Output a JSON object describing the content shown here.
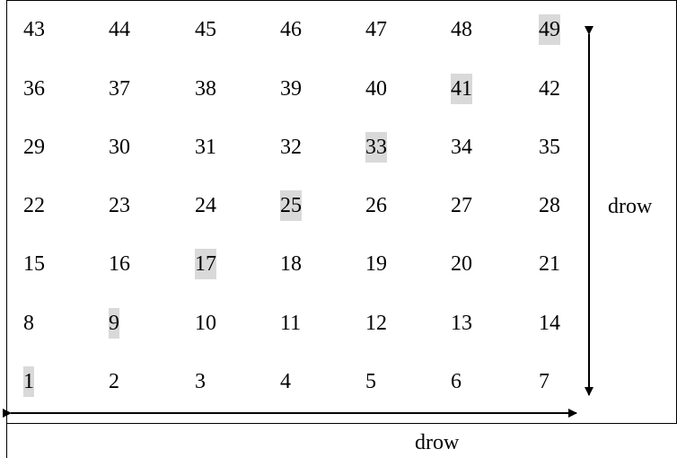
{
  "grid": {
    "rows": [
      [
        "43",
        "44",
        "45",
        "46",
        "47",
        "48",
        "49"
      ],
      [
        "36",
        "37",
        "38",
        "39",
        "40",
        "41",
        "42"
      ],
      [
        "29",
        "30",
        "31",
        "32",
        "33",
        "34",
        "35"
      ],
      [
        "22",
        "23",
        "24",
        "25",
        "26",
        "27",
        "28"
      ],
      [
        "15",
        "16",
        "17",
        "18",
        "19",
        "20",
        "21"
      ],
      [
        "8",
        "9",
        "10",
        "11",
        "12",
        "13",
        "14"
      ],
      [
        "1",
        "2",
        "3",
        "4",
        "5",
        "6",
        "7"
      ]
    ],
    "highlighted": [
      "1",
      "9",
      "17",
      "25",
      "33",
      "41",
      "49"
    ],
    "highlight_color": "#d9d9d9"
  },
  "labels": {
    "vertical": "drow",
    "horizontal": "drow"
  }
}
